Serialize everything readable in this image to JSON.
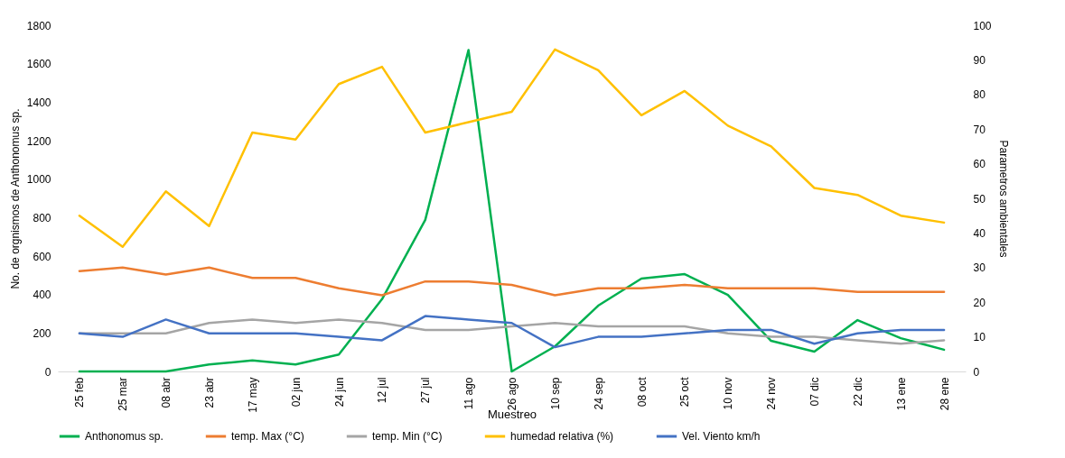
{
  "chart_data": {
    "type": "line",
    "xlabel": "Muestreo",
    "ylabel": "No. de orgnismos de Anthonomus sp.",
    "y2label": "Parametros ambientales",
    "categories": [
      "25 feb",
      "25 mar",
      "08 abr",
      "23 abr",
      "17 may",
      "02 jun",
      "24 jun",
      "12 jul",
      "27 jul",
      "11 ago",
      "26 ago",
      "10 sep",
      "24 sep",
      "08 oct",
      "25 oct",
      "10 nov",
      "24 nov",
      "07 dic",
      "22 dic",
      "13 ene",
      "28 ene"
    ],
    "series": [
      {
        "name": "Anthonomus sp.",
        "color": "#00b050",
        "values": [
          0,
          0,
          0,
          36,
          57,
          36,
          88,
          376,
          788,
          1671,
          0,
          130,
          342,
          483,
          506,
          398,
          159,
          103,
          267,
          173,
          113
        ]
      },
      {
        "name": "temp. Max (°C)",
        "color": "#ed7d31",
        "axis": "y2",
        "values": [
          29,
          30,
          28,
          30,
          27,
          27,
          24,
          22,
          26,
          26,
          25,
          22,
          24,
          24,
          25,
          24,
          24,
          24,
          23,
          23,
          23
        ]
      },
      {
        "name": "temp. Min (°C)",
        "color": "#a5a5a5",
        "axis": "y2",
        "values": [
          11,
          11,
          11,
          14,
          15,
          14,
          15,
          14,
          12,
          12,
          13,
          14,
          13,
          13,
          13,
          11,
          10,
          10,
          9,
          8,
          9
        ]
      },
      {
        "name": "humedad relativa (%)",
        "color": "#ffc000",
        "axis": "y2",
        "values": [
          45,
          36,
          52,
          42,
          69,
          67,
          83,
          88,
          69,
          72,
          75,
          93,
          87,
          74,
          81,
          71,
          65,
          53,
          51,
          45,
          43
        ]
      },
      {
        "name": "Vel. Viento km/h",
        "color": "#4472c4",
        "axis": "y2",
        "values": [
          11,
          10,
          15,
          11,
          11,
          11,
          10,
          9,
          16,
          15,
          14,
          7,
          10,
          10,
          11,
          12,
          12,
          8,
          11,
          12,
          12
        ]
      }
    ],
    "ylim": [
      0,
      1800
    ],
    "yticks": [
      0,
      200,
      400,
      600,
      800,
      1000,
      1200,
      1400,
      1600,
      1800
    ],
    "y2lim": [
      0,
      100
    ],
    "y2ticks": [
      0,
      10,
      20,
      30,
      40,
      50,
      60,
      70,
      80,
      90,
      100
    ],
    "grid": false,
    "legend": "bottom"
  }
}
